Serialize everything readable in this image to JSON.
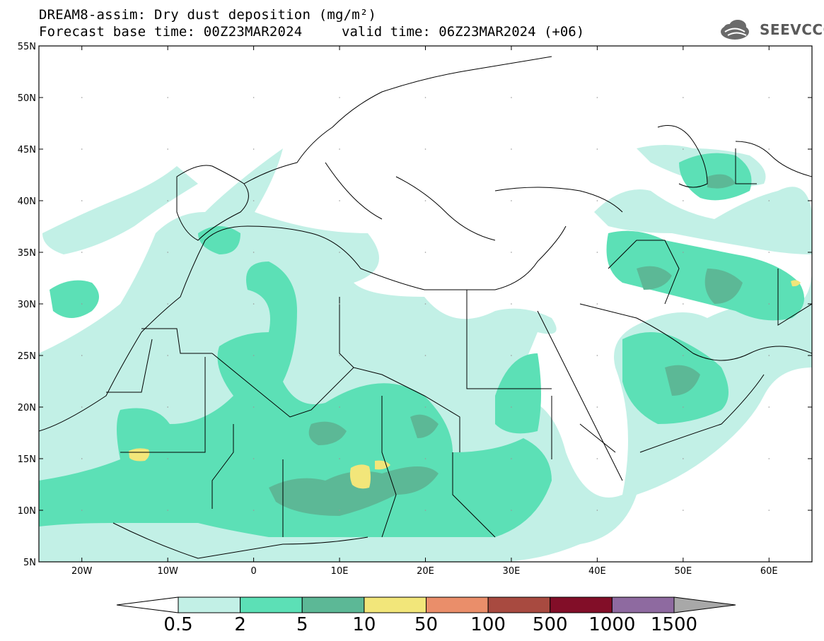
{
  "header": {
    "title_line1": "DREAM8-assim: Dry dust deposition (mg/m²)",
    "title_line2": "Forecast base time: 00Z23MAR2024",
    "valid_time": "valid time: 06Z23MAR2024 (+06)",
    "logo_text": "SEEVCCC"
  },
  "axes": {
    "lat_labels": [
      "55N",
      "50N",
      "45N",
      "40N",
      "35N",
      "30N",
      "25N",
      "20N",
      "15N",
      "10N",
      "5N"
    ],
    "lon_labels": [
      "20W",
      "10W",
      "0",
      "10E",
      "20E",
      "30E",
      "40E",
      "50E",
      "60E"
    ]
  },
  "colorbar": {
    "labels": [
      "0.5",
      "2",
      "5",
      "10",
      "50",
      "100",
      "500",
      "1000",
      "1500"
    ],
    "colors": [
      "#c2f0e6",
      "#5ce0b6",
      "#5cb896",
      "#f2e67a",
      "#ea8e6a",
      "#a84a40",
      "#820e28",
      "#8e6aa0"
    ],
    "under_color": "#ffffff",
    "over_color": "#a8a8a8"
  },
  "map_colors": {
    "level1": "#c2f0e6",
    "level2": "#5ce0b6",
    "level3": "#5cb896",
    "level4": "#f2e67a",
    "borders": "#000000"
  }
}
